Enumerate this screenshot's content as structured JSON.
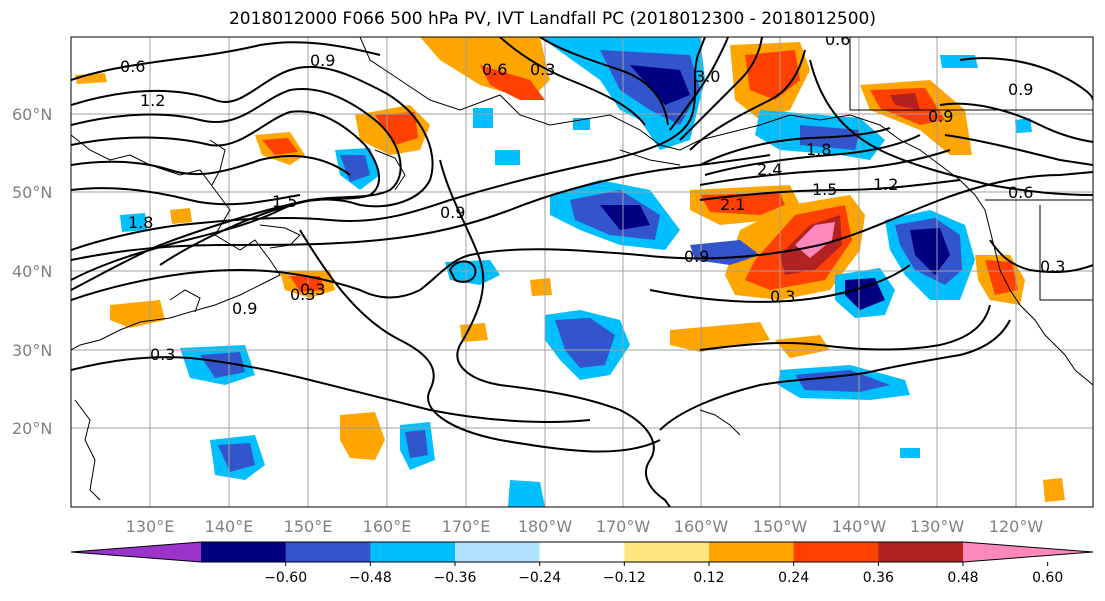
{
  "title": "2018012000 F066 500 hPa PV, IVT Landfall PC (2018012300 - 2018012500)",
  "lat_labels": [
    "60°N",
    "50°N",
    "40°N",
    "30°N",
    "20°N"
  ],
  "lon_labels": [
    "130°E",
    "140°E",
    "150°E",
    "160°E",
    "170°E",
    "180°W",
    "170°W",
    "160°W",
    "150°W",
    "140°W",
    "130°W",
    "120°W"
  ],
  "colorbar": {
    "colors": [
      "#9933cc",
      "#000080",
      "#3355cc",
      "#00bfff",
      "#b0e2ff",
      "#ffffff",
      "#ffe680",
      "#ffa500",
      "#ff4000",
      "#b22222",
      "#ff88bb"
    ],
    "tick_labels": [
      "−0.60",
      "−0.48",
      "−0.36",
      "−0.24",
      "−0.12",
      "0.12",
      "0.24",
      "0.36",
      "0.48",
      "0.60"
    ]
  },
  "contour_labels": [
    "0.6",
    "0.9",
    "1.2",
    "1.5",
    "1.8",
    "0.9",
    "0.3",
    "0.6",
    "0.9",
    "0.3",
    "3.0",
    "1.8",
    "2.4",
    "1.5",
    "2.1",
    "1.2",
    "0.6",
    "0.9",
    "0.6",
    "0.9",
    "0.3",
    "0.3",
    "0.3",
    "0.9",
    "0.3"
  ]
}
